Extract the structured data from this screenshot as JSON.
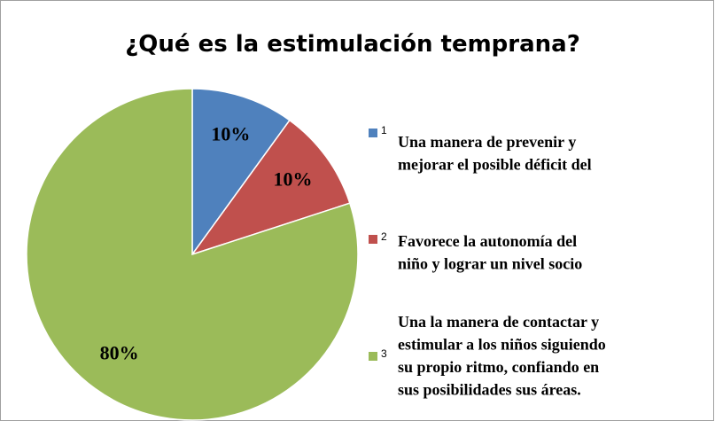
{
  "chart_data": {
    "type": "pie",
    "title": "¿Qué es la estimulación temprana?",
    "categories": [
      "1",
      "2",
      "3"
    ],
    "descriptions": [
      [
        "Una manera de prevenir y",
        "mejorar el posible déficit del"
      ],
      [
        "Favorece la autonomía del",
        "niño y lograr un nivel socio"
      ],
      [
        "Una la manera de contactar y",
        "estimular a los niños siguiendo",
        "su propio ritmo, confiando en",
        "sus posibilidades sus áreas."
      ]
    ],
    "values": [
      10,
      10,
      80
    ],
    "value_labels": [
      "10%",
      "10%",
      "80%"
    ],
    "colors": [
      "#4f81bd",
      "#c0504d",
      "#9bbb59"
    ]
  }
}
